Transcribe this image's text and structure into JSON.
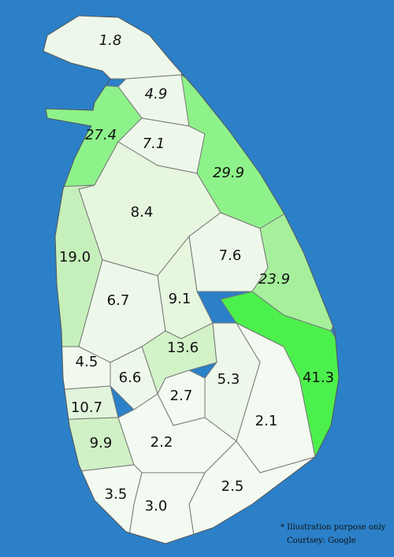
{
  "title_note": "* Illustration purpose only",
  "credit": "Courtsey: Google",
  "regions": [
    {
      "label": "1.8",
      "color": "#eef8ea",
      "italic": true
    },
    {
      "label": "4.9",
      "color": "#eef8ea",
      "italic": true
    },
    {
      "label": "27.4",
      "color": "#8ef28a",
      "italic": true
    },
    {
      "label": "7.1",
      "color": "#eef8ea",
      "italic": true
    },
    {
      "label": "29.9",
      "color": "#8ef28a",
      "italic": true
    },
    {
      "label": "8.4",
      "color": "#e6f6df",
      "italic": false
    },
    {
      "label": "19.0",
      "color": "#c6f0bb",
      "italic": false
    },
    {
      "label": "7.6",
      "color": "#eef8ea",
      "italic": false
    },
    {
      "label": "23.9",
      "color": "#a6f09c",
      "italic": true
    },
    {
      "label": "6.7",
      "color": "#eef8ea",
      "italic": false
    },
    {
      "label": "9.1",
      "color": "#e6f6df",
      "italic": false
    },
    {
      "label": "41.3",
      "color": "#4cf04c",
      "italic": false
    },
    {
      "label": "13.6",
      "color": "#d2f2c8",
      "italic": false
    },
    {
      "label": "4.5",
      "color": "#f1f9ee",
      "italic": false
    },
    {
      "label": "6.6",
      "color": "#eef8ea",
      "italic": false
    },
    {
      "label": "2.7",
      "color": "#f3faf1",
      "italic": false
    },
    {
      "label": "5.3",
      "color": "#eef8ea",
      "italic": false
    },
    {
      "label": "10.7",
      "color": "#e2f5dc",
      "italic": false
    },
    {
      "label": "2.1",
      "color": "#f3faf1",
      "italic": false
    },
    {
      "label": "9.9",
      "color": "#d0f1c6",
      "italic": false
    },
    {
      "label": "2.2",
      "color": "#f3faf1",
      "italic": false
    },
    {
      "label": "2.5",
      "color": "#f3faf1",
      "italic": false
    },
    {
      "label": "3.5",
      "color": "#f3faf1",
      "italic": false
    },
    {
      "label": "3.0",
      "color": "#f3faf1",
      "italic": false
    }
  ]
}
